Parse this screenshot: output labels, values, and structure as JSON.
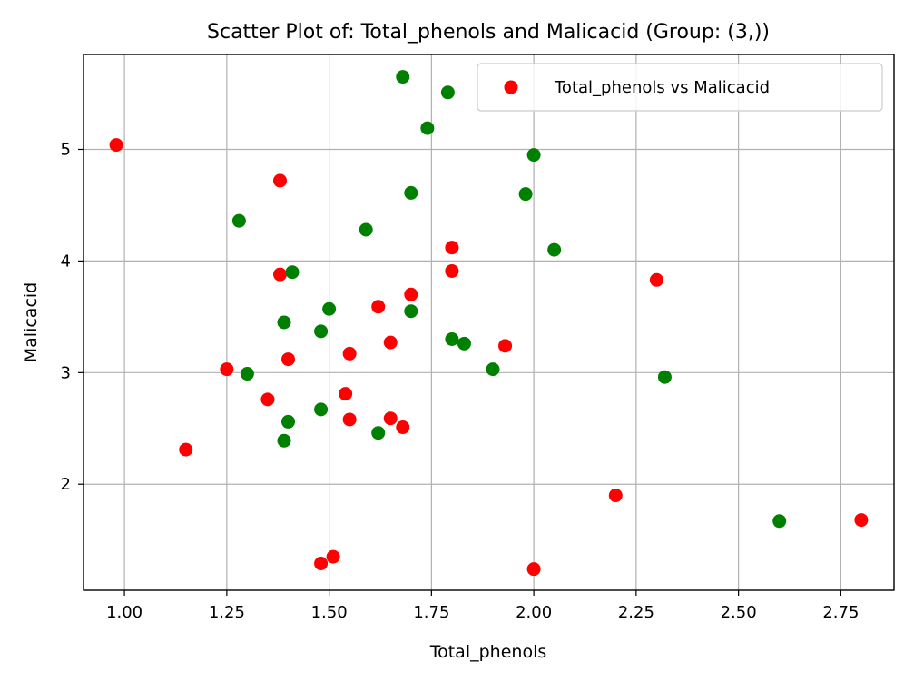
{
  "chart_data": {
    "type": "scatter",
    "title": "Scatter Plot of: Total_phenols and Malicacid (Group: (3,))",
    "xlabel": "Total_phenols",
    "ylabel": "Malicacid",
    "xlim": [
      0.9,
      2.88
    ],
    "ylim": [
      1.05,
      5.85
    ],
    "xticks": [
      1.0,
      1.25,
      1.5,
      1.75,
      2.0,
      2.25,
      2.5,
      2.75
    ],
    "xtick_labels": [
      "1.00",
      "1.25",
      "1.50",
      "1.75",
      "2.00",
      "2.25",
      "2.50",
      "2.75"
    ],
    "yticks": [
      2,
      3,
      4,
      5
    ],
    "ytick_labels": [
      "2",
      "3",
      "4",
      "5"
    ],
    "grid": true,
    "legend": {
      "position": "top-right",
      "entries": [
        {
          "label": "Total_phenols vs Malicacid",
          "color": "#ff0000"
        }
      ]
    },
    "series": [
      {
        "name": "Total_phenols vs Malicacid",
        "color": "#ff0000",
        "points": [
          [
            0.98,
            5.04
          ],
          [
            1.38,
            4.72
          ],
          [
            1.8,
            4.12
          ],
          [
            1.8,
            3.91
          ],
          [
            1.38,
            3.88
          ],
          [
            2.3,
            3.83
          ],
          [
            1.7,
            3.7
          ],
          [
            1.62,
            3.59
          ],
          [
            1.65,
            3.27
          ],
          [
            1.93,
            3.24
          ],
          [
            1.55,
            3.17
          ],
          [
            1.4,
            3.12
          ],
          [
            1.25,
            3.03
          ],
          [
            1.54,
            2.81
          ],
          [
            1.35,
            2.76
          ],
          [
            1.65,
            2.59
          ],
          [
            1.55,
            2.58
          ],
          [
            1.68,
            2.51
          ],
          [
            1.15,
            2.31
          ],
          [
            2.2,
            1.9
          ],
          [
            2.8,
            1.68
          ],
          [
            1.51,
            1.35
          ],
          [
            1.48,
            1.29
          ],
          [
            2.0,
            1.24
          ]
        ]
      },
      {
        "color": "#008000",
        "points": [
          [
            1.68,
            5.65
          ],
          [
            1.79,
            5.51
          ],
          [
            1.74,
            5.19
          ],
          [
            2.0,
            4.95
          ],
          [
            1.7,
            4.61
          ],
          [
            1.98,
            4.6
          ],
          [
            1.28,
            4.36
          ],
          [
            1.59,
            4.28
          ],
          [
            2.05,
            4.1
          ],
          [
            1.41,
            3.9
          ],
          [
            1.5,
            3.57
          ],
          [
            1.7,
            3.55
          ],
          [
            1.39,
            3.45
          ],
          [
            1.48,
            3.37
          ],
          [
            1.8,
            3.3
          ],
          [
            1.83,
            3.26
          ],
          [
            1.9,
            3.03
          ],
          [
            1.3,
            2.99
          ],
          [
            2.32,
            2.96
          ],
          [
            1.48,
            2.67
          ],
          [
            1.4,
            2.56
          ],
          [
            1.62,
            2.46
          ],
          [
            1.39,
            2.39
          ],
          [
            2.6,
            1.67
          ]
        ]
      }
    ]
  }
}
